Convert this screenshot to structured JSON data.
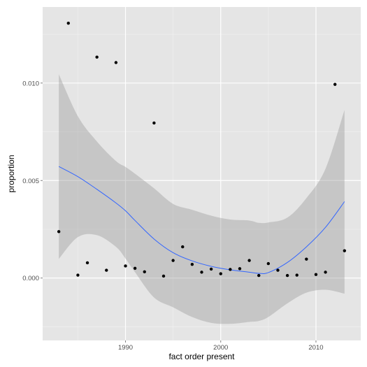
{
  "chart_data": {
    "type": "scatter",
    "title": "",
    "xlabel": "fact order present",
    "ylabel": "proportion",
    "xlim": [
      1981.3,
      2014.7
    ],
    "ylim": [
      -0.0032,
      0.0139
    ],
    "x_ticks": [
      1990,
      2000,
      2010
    ],
    "x_tick_labels": [
      "1990",
      "2000",
      "2010"
    ],
    "y_ticks": [
      0.0,
      0.005,
      0.01
    ],
    "y_tick_labels": [
      "0.000",
      "0.005",
      "0.010"
    ],
    "grid": true,
    "legend": "none",
    "points": [
      {
        "x": 1983,
        "y": 0.00238
      },
      {
        "x": 1984,
        "y": 0.01307
      },
      {
        "x": 1985,
        "y": 0.00015
      },
      {
        "x": 1986,
        "y": 0.00078
      },
      {
        "x": 1987,
        "y": 0.01133
      },
      {
        "x": 1988,
        "y": 0.0004
      },
      {
        "x": 1989,
        "y": 0.01105
      },
      {
        "x": 1990,
        "y": 0.00062
      },
      {
        "x": 1991,
        "y": 0.0005
      },
      {
        "x": 1992,
        "y": 0.00032
      },
      {
        "x": 1993,
        "y": 0.00795
      },
      {
        "x": 1994,
        "y": 0.0001
      },
      {
        "x": 1995,
        "y": 0.0009
      },
      {
        "x": 1996,
        "y": 0.0016
      },
      {
        "x": 1997,
        "y": 0.0007
      },
      {
        "x": 1998,
        "y": 0.0003
      },
      {
        "x": 1999,
        "y": 0.00046
      },
      {
        "x": 2000,
        "y": 0.00022
      },
      {
        "x": 2001,
        "y": 0.00044
      },
      {
        "x": 2002,
        "y": 0.00048
      },
      {
        "x": 2003,
        "y": 0.0009
      },
      {
        "x": 2004,
        "y": 0.00013
      },
      {
        "x": 2005,
        "y": 0.00074
      },
      {
        "x": 2006,
        "y": 0.0004
      },
      {
        "x": 2007,
        "y": 0.00013
      },
      {
        "x": 2008,
        "y": 0.00015
      },
      {
        "x": 2009,
        "y": 0.00097
      },
      {
        "x": 2010,
        "y": 0.00018
      },
      {
        "x": 2011,
        "y": 0.0003
      },
      {
        "x": 2012,
        "y": 0.00993
      },
      {
        "x": 2013,
        "y": 0.0014
      }
    ],
    "smooth": {
      "method": "loess",
      "x": [
        1983,
        1985,
        1987,
        1989,
        1990,
        1991,
        1993,
        1995,
        1997,
        1999,
        2001,
        2003,
        2004,
        2005,
        2007,
        2009,
        2011,
        2013
      ],
      "y": [
        0.00572,
        0.0052,
        0.00455,
        0.00385,
        0.00345,
        0.00295,
        0.002,
        0.0013,
        0.00088,
        0.0006,
        0.00042,
        0.0003,
        0.00024,
        0.00028,
        0.0008,
        0.0016,
        0.0026,
        0.00392
      ],
      "lower": [
        0.00098,
        0.0021,
        0.0022,
        0.0016,
        0.001,
        0.0003,
        -0.001,
        -0.0015,
        -0.002,
        -0.0023,
        -0.00235,
        -0.00225,
        -0.0022,
        -0.002,
        -0.0013,
        -0.00075,
        -0.0006,
        -0.0008
      ],
      "upper": [
        0.01045,
        0.0083,
        0.007,
        0.006,
        0.0057,
        0.00535,
        0.0046,
        0.0038,
        0.0035,
        0.0032,
        0.003,
        0.00295,
        0.00283,
        0.00285,
        0.0031,
        0.0041,
        0.0056,
        0.00862
      ]
    },
    "colors": {
      "panel_background": "#E5E5E5",
      "grid_major": "#FFFFFF",
      "grid_minor": "#F2F2F2",
      "point": "#000000",
      "smooth_line": "#3366FF",
      "confidence_band": "#999999"
    }
  }
}
